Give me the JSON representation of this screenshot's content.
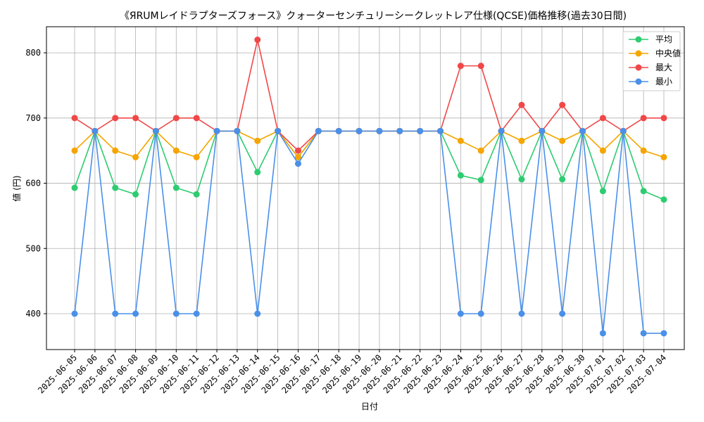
{
  "chart_data": {
    "type": "line",
    "title": "《ЯRUMレイドラプターズフォース》クォーターセンチュリーシークレットレア仕様(QCSE)価格推移(過去30日間)",
    "xlabel": "日付",
    "ylabel": "値 (円)",
    "ylim": [
      345,
      840
    ],
    "yticks": [
      400,
      500,
      600,
      700,
      800
    ],
    "grid": true,
    "legend_position": "top-right",
    "categories": [
      "2025-06-05",
      "2025-06-06",
      "2025-06-07",
      "2025-06-08",
      "2025-06-09",
      "2025-06-10",
      "2025-06-11",
      "2025-06-12",
      "2025-06-13",
      "2025-06-14",
      "2025-06-15",
      "2025-06-16",
      "2025-06-17",
      "2025-06-18",
      "2025-06-19",
      "2025-06-20",
      "2025-06-21",
      "2025-06-22",
      "2025-06-23",
      "2025-06-24",
      "2025-06-25",
      "2025-06-26",
      "2025-06-27",
      "2025-06-28",
      "2025-06-29",
      "2025-06-30",
      "2025-07-01",
      "2025-07-02",
      "2025-07-03",
      "2025-07-04"
    ],
    "series": [
      {
        "name": "平均",
        "color": "#2ecc71",
        "values": [
          593,
          680,
          593,
          583,
          680,
          593,
          583,
          680,
          680,
          617,
          680,
          640,
          680,
          680,
          680,
          680,
          680,
          680,
          680,
          612,
          605,
          680,
          606,
          680,
          606,
          680,
          588,
          680,
          588,
          575
        ]
      },
      {
        "name": "中央値",
        "color": "#f5a500",
        "values": [
          650,
          680,
          650,
          640,
          680,
          650,
          640,
          680,
          680,
          665,
          680,
          640,
          680,
          680,
          680,
          680,
          680,
          680,
          680,
          665,
          650,
          680,
          665,
          680,
          665,
          680,
          650,
          680,
          650,
          640
        ]
      },
      {
        "name": "最大",
        "color": "#f04848",
        "values": [
          700,
          680,
          700,
          700,
          680,
          700,
          700,
          680,
          680,
          820,
          680,
          650,
          680,
          680,
          680,
          680,
          680,
          680,
          680,
          780,
          780,
          680,
          720,
          680,
          720,
          680,
          700,
          680,
          700,
          700
        ]
      },
      {
        "name": "最小",
        "color": "#4a90e8",
        "values": [
          400,
          680,
          400,
          400,
          680,
          400,
          400,
          680,
          680,
          400,
          680,
          630,
          680,
          680,
          680,
          680,
          680,
          680,
          680,
          400,
          400,
          680,
          400,
          680,
          400,
          680,
          370,
          680,
          370,
          370
        ]
      }
    ]
  }
}
